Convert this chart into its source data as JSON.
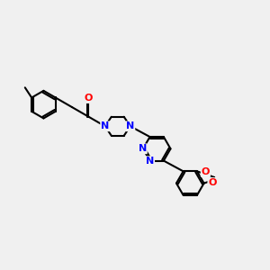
{
  "background_color": "#f0f0f0",
  "bond_color": "#000000",
  "nitrogen_color": "#0000ff",
  "oxygen_color": "#ff0000",
  "bond_width": 1.5,
  "figsize": [
    3.0,
    3.0
  ],
  "dpi": 100,
  "xlim": [
    0,
    10
  ],
  "ylim": [
    1,
    9
  ]
}
